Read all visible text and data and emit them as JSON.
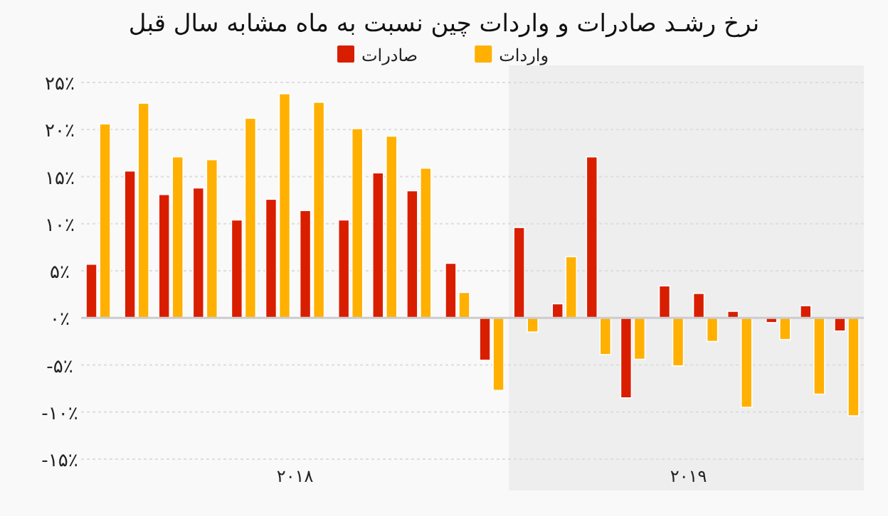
{
  "chart_data": {
    "type": "bar",
    "title": "نرخ رشـد صادرات و واردات چین نسبت به ماه مشابه سال قبل",
    "x": [
      2018.04,
      2018.13,
      2018.21,
      2018.29,
      2018.38,
      2018.46,
      2018.54,
      2018.63,
      2018.71,
      2018.79,
      2018.88,
      2018.96,
      2019.04,
      2019.13,
      2019.21,
      2019.29,
      2019.38,
      2019.46,
      2019.54,
      2019.63,
      2019.71,
      2019.79
    ],
    "series": [
      {
        "name": "صادرات",
        "color": "#d91e00",
        "values": [
          5.7,
          15.6,
          13.1,
          13.8,
          10.4,
          12.6,
          11.4,
          10.4,
          15.4,
          13.5,
          5.8,
          -4.5,
          9.6,
          1.5,
          17.1,
          -8.5,
          3.4,
          2.6,
          0.7,
          -0.5,
          1.3,
          -1.4
        ]
      },
      {
        "name": "واردات",
        "color": "#ffb000",
        "values": [
          20.6,
          22.8,
          17.1,
          16.8,
          21.2,
          23.8,
          22.9,
          20.1,
          19.3,
          15.9,
          2.7,
          -7.7,
          -1.5,
          6.5,
          -3.9,
          -4.4,
          -5.1,
          -2.5,
          -9.5,
          -2.3,
          -8.1,
          -10.4
        ]
      }
    ],
    "xlim": [
      2018,
      2019.83
    ],
    "xticks": [
      {
        "value": 2018.5,
        "label": "۲۰۱۸"
      },
      {
        "value": 2019.42,
        "label": "۲۰۱۹"
      }
    ],
    "ylim": [
      -15,
      25
    ],
    "yticks": [
      {
        "value": -15,
        "label": "-۱۵٪"
      },
      {
        "value": -10,
        "label": "-۱۰٪"
      },
      {
        "value": -5,
        "label": "-۵٪"
      },
      {
        "value": 0,
        "label": "۰٪"
      },
      {
        "value": 5,
        "label": "۵٪"
      },
      {
        "value": 10,
        "label": "۱۰٪"
      },
      {
        "value": 15,
        "label": "۱۵٪"
      },
      {
        "value": 20,
        "label": "۲۰٪"
      },
      {
        "value": 25,
        "label": "۲۵٪"
      }
    ],
    "bands": [
      {
        "axis": "x",
        "from": 2019,
        "to": 2019.83,
        "color": "#eeeeee"
      }
    ],
    "grid": "y",
    "legend": "top"
  }
}
